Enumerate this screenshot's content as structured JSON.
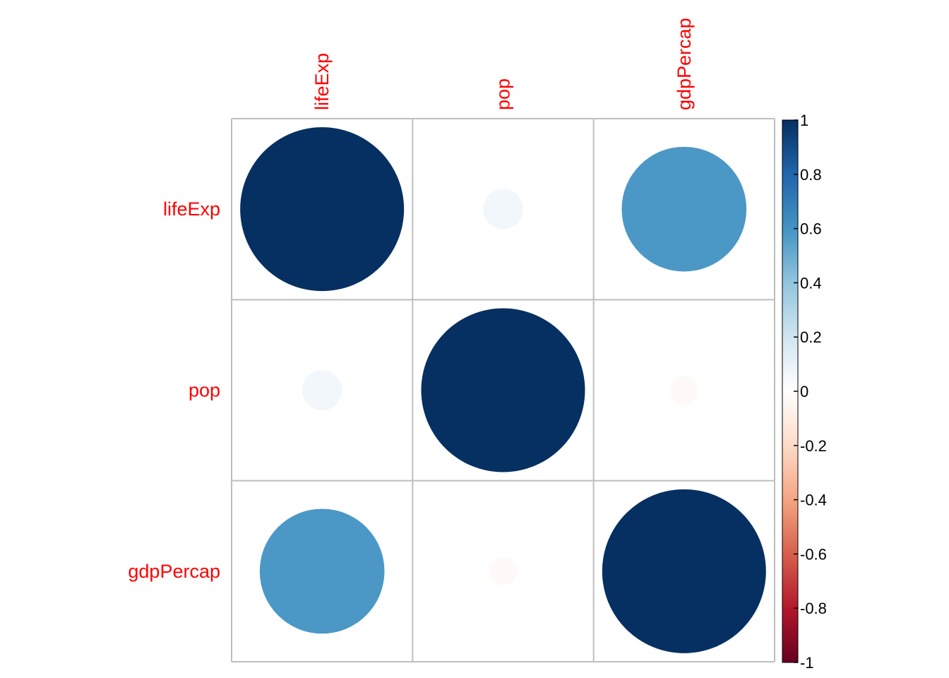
{
  "chart_data": {
    "type": "heatmap",
    "variables": [
      "lifeExp",
      "pop",
      "gdpPercap"
    ],
    "matrix": [
      [
        1.0,
        0.06,
        0.58
      ],
      [
        0.06,
        1.0,
        -0.03
      ],
      [
        0.58,
        -0.03,
        1.0
      ]
    ],
    "colorbar": {
      "range": [
        -1,
        1
      ],
      "ticks": [
        "1",
        "0.8",
        "0.6",
        "0.4",
        "0.2",
        "0",
        "-0.2",
        "-0.4",
        "-0.6",
        "-0.8",
        "-1"
      ],
      "tick_values": [
        1,
        0.8,
        0.6,
        0.4,
        0.2,
        0,
        -0.2,
        -0.4,
        -0.6,
        -0.8,
        -1
      ]
    },
    "label_color": "#ff0000",
    "grid_color": "#bebebe"
  }
}
